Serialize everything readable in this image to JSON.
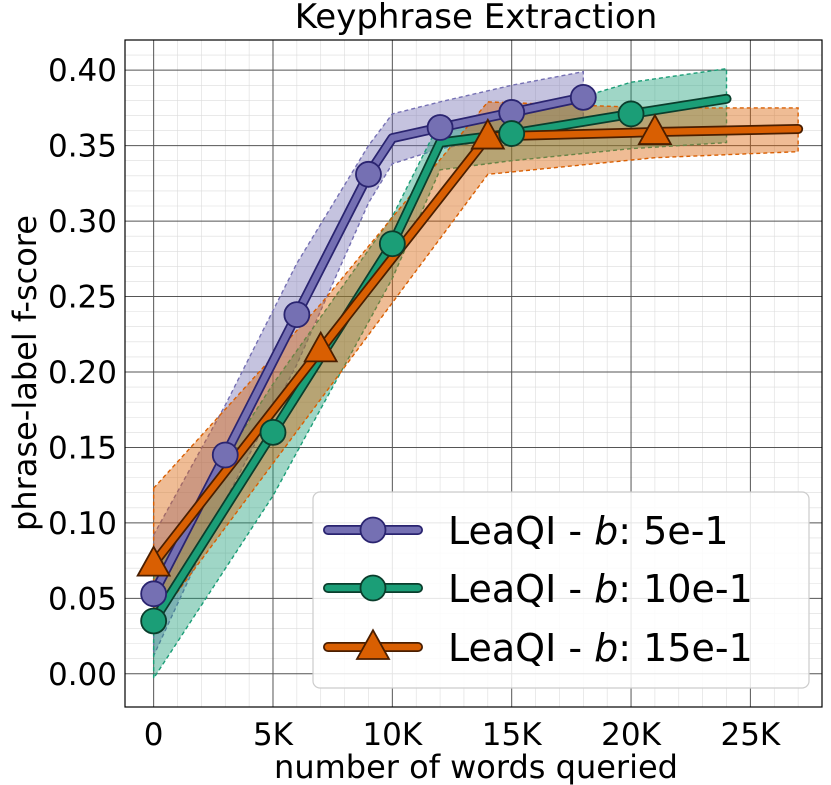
{
  "chart_data": {
    "type": "line",
    "title": "Keyphrase Extraction",
    "xlabel": "number of words queried",
    "ylabel": "phrase-label f-score",
    "xlim": [
      -1200,
      28000
    ],
    "ylim": [
      -0.022,
      0.42
    ],
    "x_ticks": [
      0,
      5000,
      10000,
      15000,
      20000,
      25000
    ],
    "x_tick_labels": [
      "0",
      "5K",
      "10K",
      "15K",
      "20K",
      "25K"
    ],
    "y_ticks": [
      0.0,
      0.05,
      0.1,
      0.15,
      0.2,
      0.25,
      0.3,
      0.35,
      0.4
    ],
    "y_tick_labels": [
      "0.00",
      "0.05",
      "0.10",
      "0.15",
      "0.20",
      "0.25",
      "0.30",
      "0.35",
      "0.40"
    ],
    "grid": true,
    "legend_position": "lower-right",
    "series": [
      {
        "name": "LeaQI - b: 5e-1",
        "legend_prefix": "LeaQI - ",
        "legend_var": "b",
        "legend_suffix": ": 5e-1",
        "color": "#7570b3",
        "edge_color": "#2a2470",
        "marker": "circle",
        "x": [
          0,
          3000,
          6000,
          9000,
          10000,
          12000,
          15000,
          18000
        ],
        "y": [
          0.053,
          0.145,
          0.238,
          0.331,
          0.355,
          0.362,
          0.372,
          0.382
        ],
        "y_low": [
          0.012,
          0.115,
          0.205,
          0.312,
          0.338,
          0.348,
          0.356,
          0.366
        ],
        "y_high": [
          0.092,
          0.178,
          0.272,
          0.35,
          0.371,
          0.379,
          0.39,
          0.399
        ],
        "marker_x": [
          0,
          3000,
          6000,
          9000,
          12000,
          15000,
          18000
        ],
        "marker_y": [
          0.053,
          0.145,
          0.238,
          0.331,
          0.362,
          0.372,
          0.382
        ]
      },
      {
        "name": "LeaQI - b: 10e-1",
        "legend_prefix": "LeaQI - ",
        "legend_var": "b",
        "legend_suffix": ": 10e-1",
        "color": "#1b9e77",
        "edge_color": "#0a3d2c",
        "marker": "circle",
        "x": [
          0,
          5000,
          10000,
          12000,
          15000,
          20000,
          24000
        ],
        "y": [
          0.035,
          0.16,
          0.285,
          0.352,
          0.358,
          0.371,
          0.381
        ],
        "y_low": [
          -0.003,
          0.118,
          0.262,
          0.334,
          0.34,
          0.348,
          0.352
        ],
        "y_high": [
          0.07,
          0.192,
          0.303,
          0.366,
          0.368,
          0.392,
          0.401
        ],
        "marker_x": [
          0,
          5000,
          10000,
          15000,
          20000
        ],
        "marker_y": [
          0.035,
          0.16,
          0.285,
          0.358,
          0.371
        ]
      },
      {
        "name": "LeaQI - b: 15e-1",
        "legend_prefix": "LeaQI - ",
        "legend_var": "b",
        "legend_suffix": ": 15e-1",
        "color": "#d95f02",
        "edge_color": "#4a1e00",
        "marker": "triangle",
        "x": [
          0,
          7000,
          14000,
          21000,
          27000
        ],
        "y": [
          0.073,
          0.215,
          0.356,
          0.359,
          0.361
        ],
        "y_low": [
          0.033,
          0.182,
          0.331,
          0.342,
          0.346
        ],
        "y_high": [
          0.123,
          0.245,
          0.379,
          0.375,
          0.375
        ],
        "marker_x": [
          0,
          7000,
          14000,
          21000
        ],
        "marker_y": [
          0.073,
          0.215,
          0.356,
          0.359
        ]
      }
    ]
  }
}
